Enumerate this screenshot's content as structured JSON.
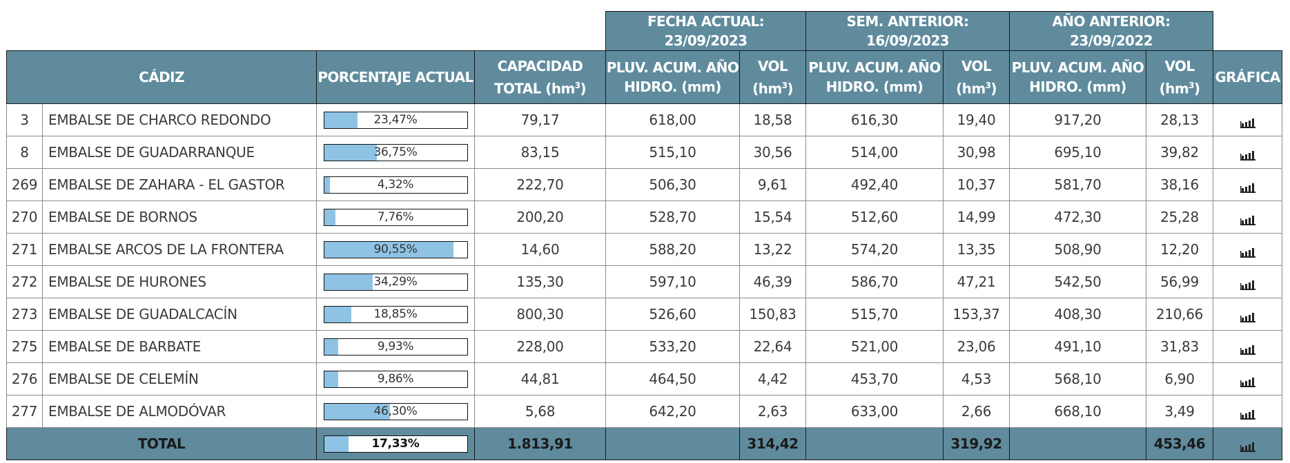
{
  "header_groups": {
    "fecha_actual": "FECHA ACTUAL: 23/09/2023",
    "sem_anterior": "SEM. ANTERIOR: 16/09/2023",
    "ano_anterior": "AÑO ANTERIOR: 23/09/2022"
  },
  "columns": {
    "province": "CÁDIZ",
    "porcentaje": "PORCENTAJE ACTUAL",
    "capacidad_l1": "CAPACIDAD",
    "capacidad_l2": "TOTAL (hm",
    "pluv_l1": "PLUV. ACUM. AÑO",
    "pluv_l2": "HIDRO. (mm)",
    "vol_l1": "VOL",
    "vol_l2": "(hm",
    "sup3": "3",
    "close_paren": ")",
    "grafica": "GRÁFICA"
  },
  "accent_colors": {
    "header_bg": "#5f8b9d",
    "bar_fill": "#8fc3e4"
  },
  "rows": [
    {
      "id": "3",
      "name": "EMBALSE DE CHARCO REDONDO",
      "pct": "23,47%",
      "pct_val": 23.47,
      "capacidad": "79,17",
      "pluv_act": "618,00",
      "vol_act": "18,58",
      "pluv_sem": "616,30",
      "vol_sem": "19,40",
      "pluv_ano": "917,20",
      "vol_ano": "28,13"
    },
    {
      "id": "8",
      "name": "EMBALSE DE GUADARRANQUE",
      "pct": "36,75%",
      "pct_val": 36.75,
      "capacidad": "83,15",
      "pluv_act": "515,10",
      "vol_act": "30,56",
      "pluv_sem": "514,00",
      "vol_sem": "30,98",
      "pluv_ano": "695,10",
      "vol_ano": "39,82"
    },
    {
      "id": "269",
      "name": "EMBALSE DE ZAHARA - EL GASTOR",
      "pct": "4,32%",
      "pct_val": 4.32,
      "capacidad": "222,70",
      "pluv_act": "506,30",
      "vol_act": "9,61",
      "pluv_sem": "492,40",
      "vol_sem": "10,37",
      "pluv_ano": "581,70",
      "vol_ano": "38,16"
    },
    {
      "id": "270",
      "name": "EMBALSE DE BORNOS",
      "pct": "7,76%",
      "pct_val": 7.76,
      "capacidad": "200,20",
      "pluv_act": "528,70",
      "vol_act": "15,54",
      "pluv_sem": "512,60",
      "vol_sem": "14,99",
      "pluv_ano": "472,30",
      "vol_ano": "25,28"
    },
    {
      "id": "271",
      "name": "EMBALSE ARCOS DE LA FRONTERA",
      "pct": "90,55%",
      "pct_val": 90.55,
      "capacidad": "14,60",
      "pluv_act": "588,20",
      "vol_act": "13,22",
      "pluv_sem": "574,20",
      "vol_sem": "13,35",
      "pluv_ano": "508,90",
      "vol_ano": "12,20"
    },
    {
      "id": "272",
      "name": "EMBALSE DE HURONES",
      "pct": "34,29%",
      "pct_val": 34.29,
      "capacidad": "135,30",
      "pluv_act": "597,10",
      "vol_act": "46,39",
      "pluv_sem": "586,70",
      "vol_sem": "47,21",
      "pluv_ano": "542,50",
      "vol_ano": "56,99"
    },
    {
      "id": "273",
      "name": "EMBALSE DE GUADALCACÍN",
      "pct": "18,85%",
      "pct_val": 18.85,
      "capacidad": "800,30",
      "pluv_act": "526,60",
      "vol_act": "150,83",
      "pluv_sem": "515,70",
      "vol_sem": "153,37",
      "pluv_ano": "408,30",
      "vol_ano": "210,66"
    },
    {
      "id": "275",
      "name": "EMBALSE DE BARBATE",
      "pct": "9,93%",
      "pct_val": 9.93,
      "capacidad": "228,00",
      "pluv_act": "533,20",
      "vol_act": "22,64",
      "pluv_sem": "521,00",
      "vol_sem": "23,06",
      "pluv_ano": "491,10",
      "vol_ano": "31,83"
    },
    {
      "id": "276",
      "name": "EMBALSE DE CELEMÍN",
      "pct": "9,86%",
      "pct_val": 9.86,
      "capacidad": "44,81",
      "pluv_act": "464,50",
      "vol_act": "4,42",
      "pluv_sem": "453,70",
      "vol_sem": "4,53",
      "pluv_ano": "568,10",
      "vol_ano": "6,90"
    },
    {
      "id": "277",
      "name": "EMBALSE DE ALMODÓVAR",
      "pct": "46,30%",
      "pct_val": 46.3,
      "capacidad": "5,68",
      "pluv_act": "642,20",
      "vol_act": "2,63",
      "pluv_sem": "633,00",
      "vol_sem": "2,66",
      "pluv_ano": "668,10",
      "vol_ano": "3,49"
    }
  ],
  "total": {
    "label": "TOTAL",
    "pct": "17,33%",
    "pct_val": 17.33,
    "capacidad": "1.813,91",
    "vol_act": "314,42",
    "vol_sem": "319,92",
    "vol_ano": "453,46"
  },
  "icons": {
    "grafica": "bar-chart-icon"
  }
}
